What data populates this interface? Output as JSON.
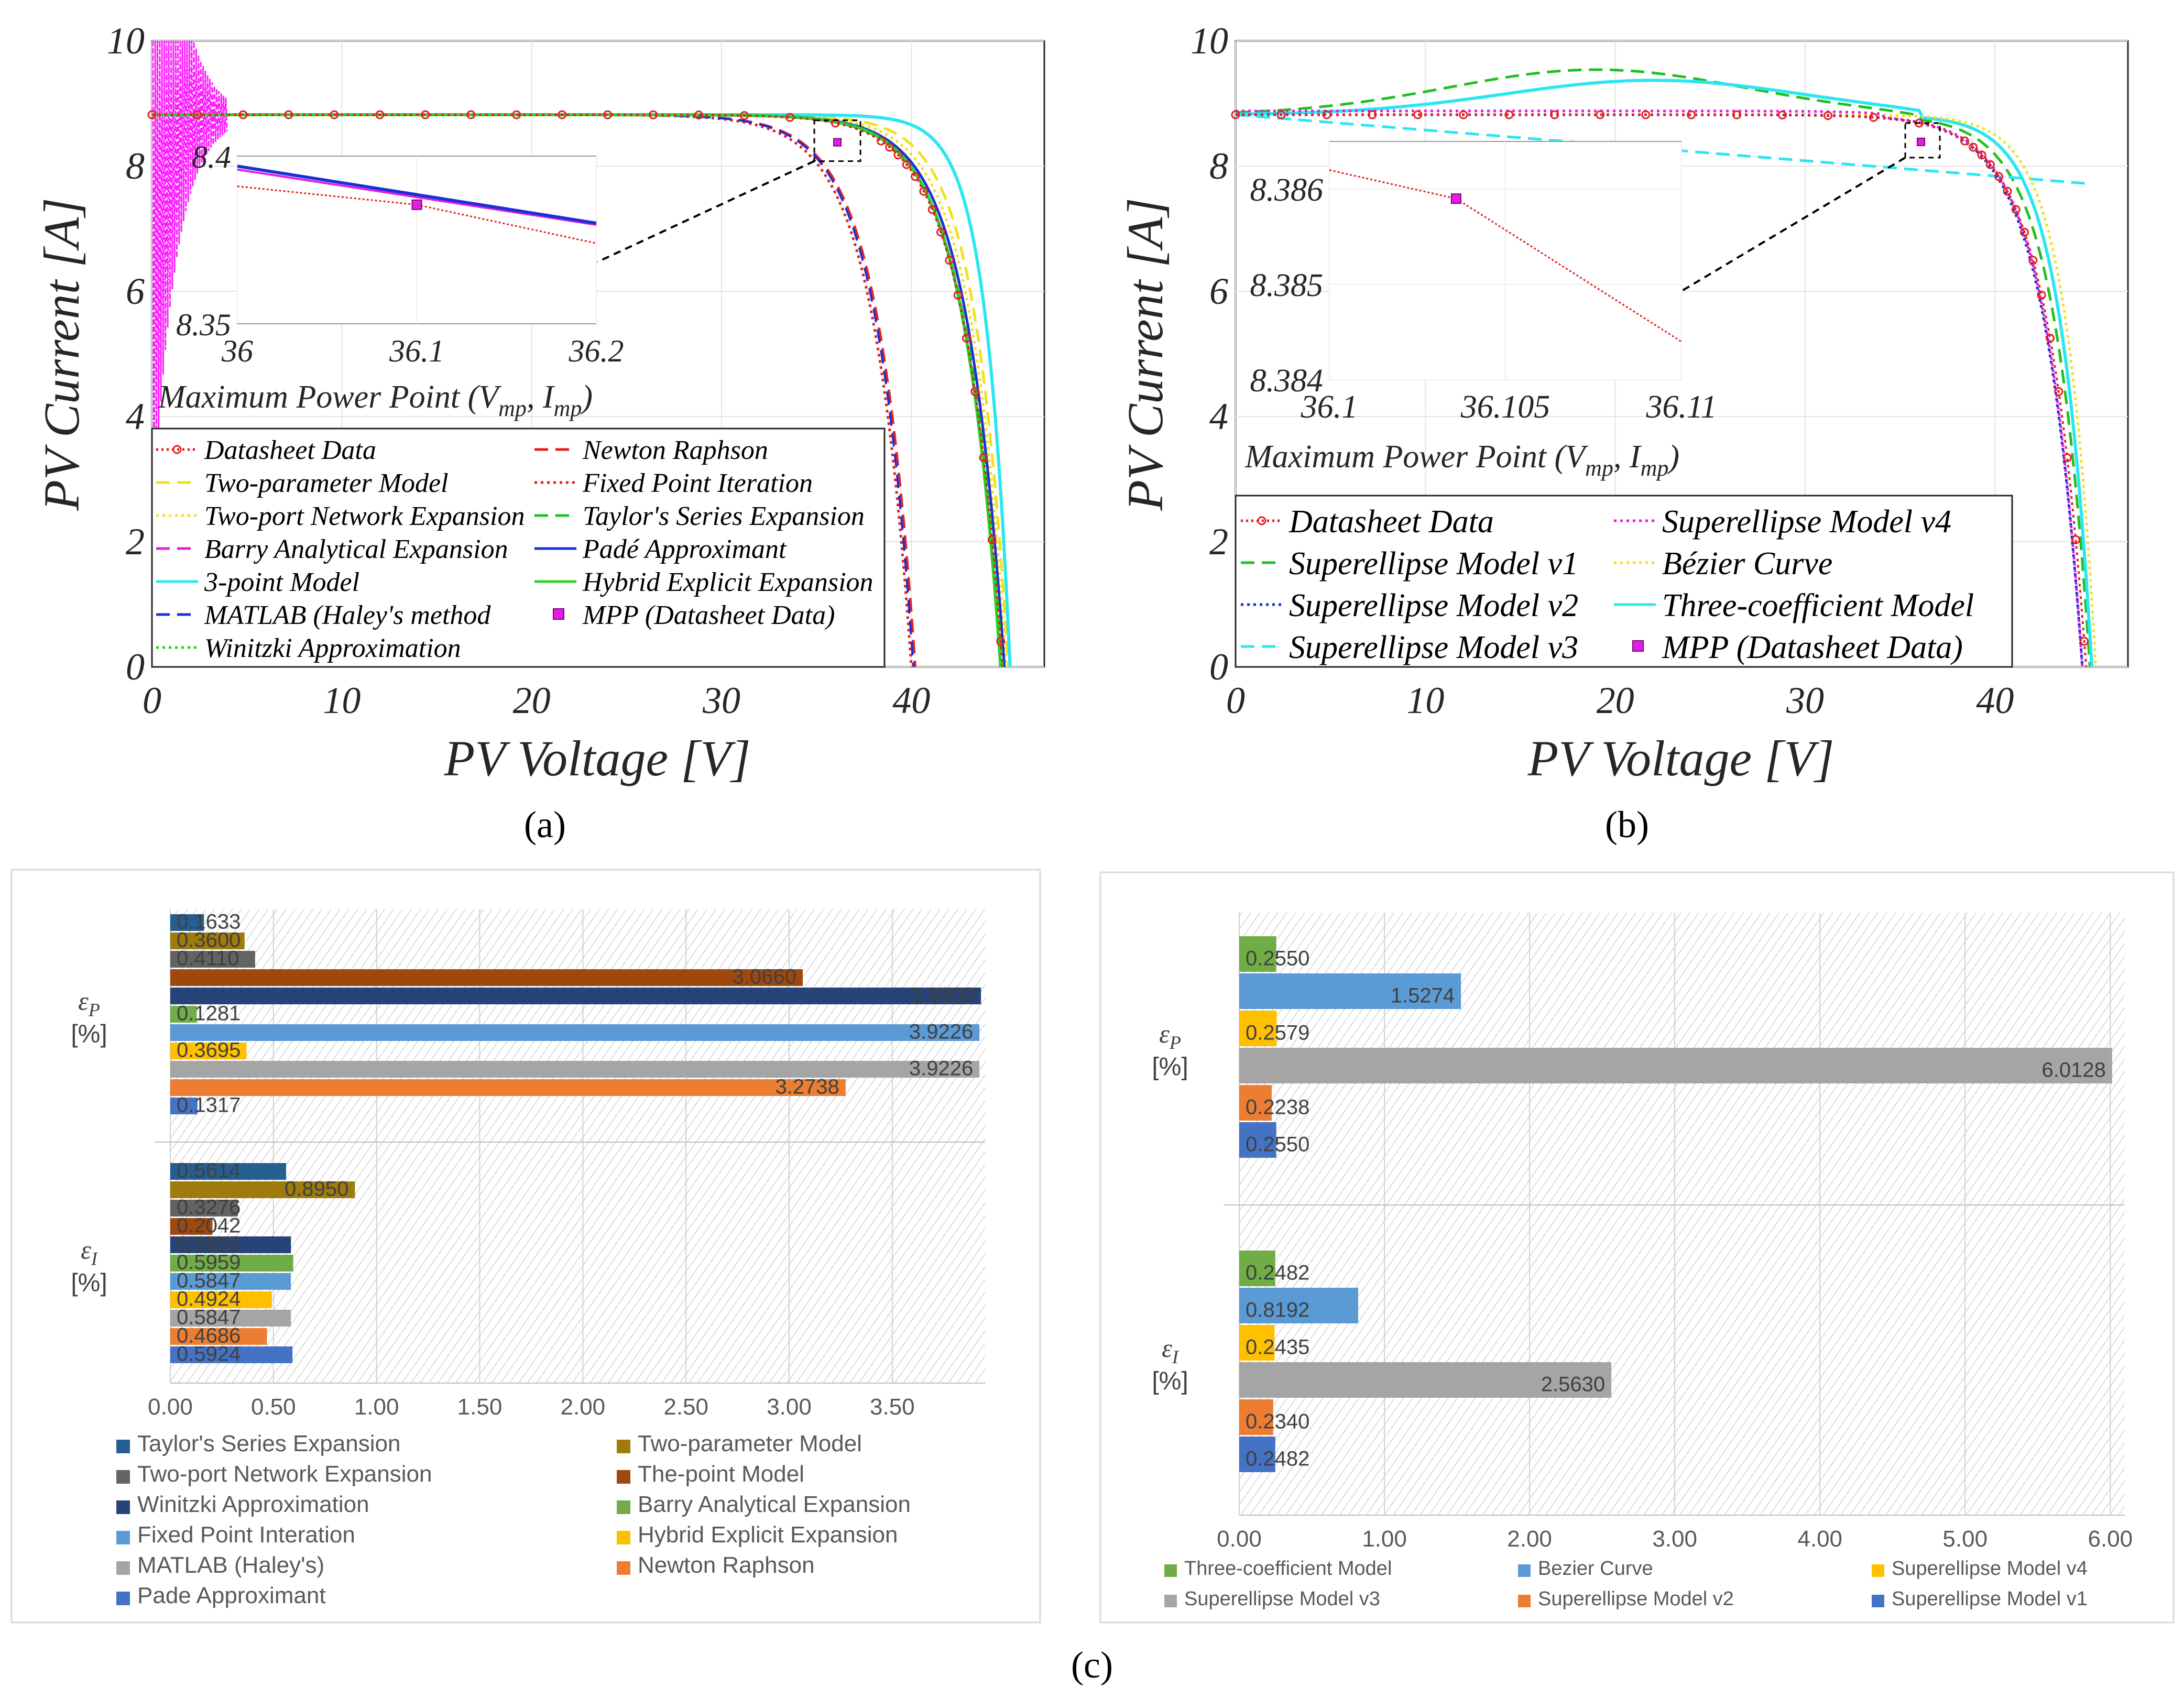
{
  "chart_data": [
    {
      "id": "a",
      "type": "line",
      "panel_label": "(a)",
      "xlabel": "PV Voltage [V]",
      "ylabel": "PV Current [A]",
      "xlim": [
        0,
        47
      ],
      "ylim": [
        0,
        10
      ],
      "xticks": [
        "0",
        "10",
        "20",
        "30",
        "40"
      ],
      "yticks": [
        "0",
        "2",
        "4",
        "6",
        "8",
        "10"
      ],
      "inset": {
        "title": "Maximum Power Point (V",
        "title_sub1": "mp",
        "title_mid": ", I",
        "title_sub2": "mp",
        "title_end": ")",
        "xlim": [
          36,
          36.2
        ],
        "ylim": [
          8.35,
          8.4
        ],
        "xticks": [
          "36",
          "36.1",
          "36.2"
        ],
        "yticks": [
          "8.35",
          "8.4"
        ],
        "mpp": [
          36.1,
          8.3855
        ]
      },
      "series": [
        {
          "name": "Datasheet Data",
          "color": "#e32020",
          "dash": "dot-marker"
        },
        {
          "name": "Two-parameter Model",
          "color": "#f2e01a",
          "dash": "dash"
        },
        {
          "name": "Two-port Network Expansion",
          "color": "#f2e01a",
          "dash": "dot"
        },
        {
          "name": "Barry Analytical Expansion",
          "color": "#e020e0",
          "dash": "dash"
        },
        {
          "name": "3-point Model",
          "color": "#2ae6f2",
          "dash": "solid"
        },
        {
          "name": "MATLAB (Haley's method",
          "color": "#1b2fd6",
          "dash": "dash"
        },
        {
          "name": "Winitzki Approximation",
          "color": "#20d020",
          "dash": "dot"
        },
        {
          "name": "Newton Raphson",
          "color": "#e32020",
          "dash": "dash"
        },
        {
          "name": "Fixed Point Iteration",
          "color": "#e32020",
          "dash": "dot"
        },
        {
          "name": "Taylor's Series Expansion",
          "color": "#20c020",
          "dash": "dash"
        },
        {
          "name": "Padé Approximant",
          "color": "#1b2fd6",
          "dash": "solid"
        },
        {
          "name": "Hybrid Explicit Expansion",
          "color": "#30d030",
          "dash": "solid"
        },
        {
          "name": "MPP (Datasheet Data)",
          "color": "#e020e0",
          "dash": "square-marker"
        }
      ]
    },
    {
      "id": "b",
      "type": "line",
      "panel_label": "(b)",
      "xlabel": "PV Voltage [V]",
      "ylabel": "PV Current [A]",
      "xlim": [
        0,
        47
      ],
      "ylim": [
        0,
        10
      ],
      "xticks": [
        "0",
        "10",
        "20",
        "30",
        "40"
      ],
      "yticks": [
        "0",
        "2",
        "4",
        "6",
        "8",
        "10"
      ],
      "inset": {
        "title": "Maximum Power Point (V",
        "title_sub1": "mp",
        "title_mid": ", I",
        "title_sub2": "mp",
        "title_end": ")",
        "xlim": [
          36.1,
          36.11
        ],
        "ylim": [
          8.384,
          8.3865
        ],
        "xticks": [
          "36.1",
          "36.105",
          "36.11"
        ],
        "yticks": [
          "8.384",
          "8.385",
          "8.386"
        ],
        "mpp": [
          36.1036,
          8.3859
        ]
      },
      "series": [
        {
          "name": "Datasheet Data",
          "color": "#e32020",
          "dash": "dot-marker"
        },
        {
          "name": "Superellipse Model v1",
          "color": "#20c020",
          "dash": "dash"
        },
        {
          "name": "Superellipse Model v2",
          "color": "#1b2fd6",
          "dash": "dot"
        },
        {
          "name": "Superellipse Model v3",
          "color": "#2ae6f2",
          "dash": "dash"
        },
        {
          "name": "Superellipse Model v4",
          "color": "#e020e0",
          "dash": "dot"
        },
        {
          "name": "Bézier Curve",
          "color": "#f2e01a",
          "dash": "dot"
        },
        {
          "name": "Three-coefficient Model",
          "color": "#2ae6f2",
          "dash": "solid"
        },
        {
          "name": "MPP (Datasheet Data)",
          "color": "#e020e0",
          "dash": "square-marker"
        }
      ]
    },
    {
      "id": "c-left",
      "type": "bar",
      "orientation": "horizontal",
      "xlim": [
        0,
        3.95
      ],
      "xticks": [
        "0.00",
        "0.50",
        "1.00",
        "1.50",
        "2.00",
        "2.50",
        "3.00",
        "3.50"
      ],
      "groups": [
        {
          "label": "εP",
          "sym": "ε",
          "sub": "P",
          "unit": "[%]"
        },
        {
          "label": "εI",
          "sym": "ε",
          "sub": "I",
          "unit": "[%]"
        }
      ],
      "series": [
        {
          "name": "Taylor's Series Expansion",
          "color": "#255e91",
          "ep": 0.1633,
          "ei": 0.5614,
          "ep_label": "0.1633",
          "ei_label": "0.5614"
        },
        {
          "name": "Two-parameter Model",
          "color": "#9e7b0a",
          "ep": 0.36,
          "ei": 0.895,
          "ep_label": "0.3600",
          "ei_label": "0.8950"
        },
        {
          "name": "Two-port Network Expansion",
          "color": "#636363",
          "ep": 0.411,
          "ei": 0.3276,
          "ep_label": "0.4110",
          "ei_label": "0.3276"
        },
        {
          "name": "The-point Model",
          "color": "#9e480e",
          "ep": 3.066,
          "ei": 0.2042,
          "ep_label": "3.0660",
          "ei_label": "0.2042"
        },
        {
          "name": "Winitzki Approximation",
          "color": "#264478",
          "ep": 3.93,
          "ei": 0.585,
          "ep_label": "3.9300",
          "ei_label": "0.5850"
        },
        {
          "name": "Barry Analytical Expansion",
          "color": "#70ad47",
          "ep": 0.1281,
          "ei": 0.5959,
          "ep_label": "0.1281",
          "ei_label": "0.5959"
        },
        {
          "name": "Fixed Point Interation",
          "color": "#5b9bd5",
          "ep": 3.9226,
          "ei": 0.5847,
          "ep_label": "3.9226",
          "ei_label": "0.5847"
        },
        {
          "name": "Hybrid Explicit Expansion",
          "color": "#ffc000",
          "ep": 0.3695,
          "ei": 0.4924,
          "ep_label": "0.3695",
          "ei_label": "0.4924"
        },
        {
          "name": "MATLAB (Haley's)",
          "color": "#a5a5a5",
          "ep": 3.9226,
          "ei": 0.5847,
          "ep_label": "3.9226",
          "ei_label": "0.5847"
        },
        {
          "name": "Newton Raphson",
          "color": "#ed7d31",
          "ep": 3.2738,
          "ei": 0.4686,
          "ep_label": "3.2738",
          "ei_label": "0.4686"
        },
        {
          "name": "Pade Approximant",
          "color": "#4472c4",
          "ep": 0.1317,
          "ei": 0.5924,
          "ep_label": "0.1317",
          "ei_label": "0.5924"
        }
      ]
    },
    {
      "id": "c-right",
      "type": "bar",
      "orientation": "horizontal",
      "xlim": [
        0,
        6.1
      ],
      "xticks": [
        "0.00",
        "1.00",
        "2.00",
        "3.00",
        "4.00",
        "5.00",
        "6.00"
      ],
      "groups": [
        {
          "label": "εP",
          "sym": "ε",
          "sub": "P",
          "unit": "[%]"
        },
        {
          "label": "εI",
          "sym": "ε",
          "sub": "I",
          "unit": "[%]"
        }
      ],
      "series": [
        {
          "name": "Three-coefficient Model",
          "color": "#70ad47",
          "ep": 0.255,
          "ei": 0.2482,
          "ep_label": "0.2550",
          "ei_label": "0.2482"
        },
        {
          "name": "Bezier Curve",
          "color": "#5b9bd5",
          "ep": 1.5274,
          "ei": 0.8192,
          "ep_label": "1.5274",
          "ei_label": "0.8192"
        },
        {
          "name": "Superellipse Model v4",
          "color": "#ffc000",
          "ep": 0.2579,
          "ei": 0.2435,
          "ep_label": "0.2579",
          "ei_label": "0.2435"
        },
        {
          "name": "Superellipse Model v3",
          "color": "#a5a5a5",
          "ep": 6.0128,
          "ei": 2.563,
          "ep_label": "6.0128",
          "ei_label": "2.5630"
        },
        {
          "name": "Superellipse Model v2",
          "color": "#ed7d31",
          "ep": 0.2238,
          "ei": 0.234,
          "ep_label": "0.2238",
          "ei_label": "0.2340"
        },
        {
          "name": "Superellipse Model v1",
          "color": "#4472c4",
          "ep": 0.255,
          "ei": 0.2482,
          "ep_label": "0.2550",
          "ei_label": "0.2482"
        }
      ]
    }
  ],
  "caption_c": "(c)"
}
